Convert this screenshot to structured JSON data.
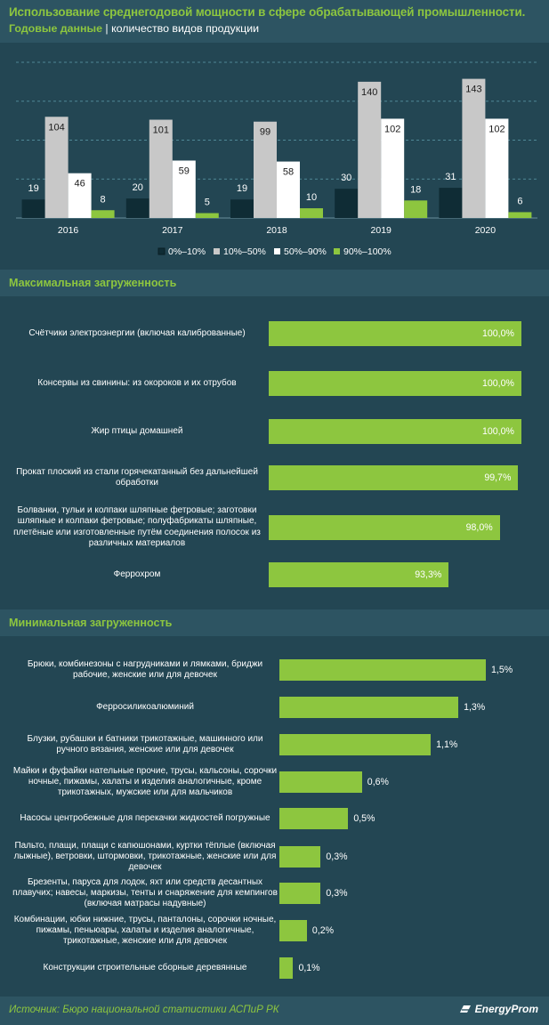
{
  "header": {
    "title": "Использование среднегодовой мощности в сфере обрабатывающей промышленности.",
    "subtitle_accent": "Годовые данные",
    "subtitle_sep": " | ",
    "subtitle_rest": "количество видов продукции"
  },
  "sections": {
    "max_title": "Максимальная загруженность",
    "min_title": "Минимальная загруженность"
  },
  "footer": {
    "source": "Источник: Бюро национальной статистики АСПиР РК",
    "logo": "EnergyProm"
  },
  "colors": {
    "background": "#2d5462",
    "panel": "#234653",
    "accent": "#8dc63f",
    "series": [
      "#0f2c35",
      "#c8c8c8",
      "#ffffff",
      "#8dc63f"
    ]
  },
  "chart_data": [
    {
      "type": "bar",
      "categories": [
        "2016",
        "2017",
        "2018",
        "2019",
        "2020"
      ],
      "series": [
        {
          "name": "0%–10%",
          "values": [
            19,
            20,
            19,
            30,
            31
          ]
        },
        {
          "name": "10%–50%",
          "values": [
            104,
            101,
            99,
            140,
            143
          ]
        },
        {
          "name": "50%–90%",
          "values": [
            46,
            59,
            58,
            102,
            102
          ]
        },
        {
          "name": "90%–100%",
          "values": [
            8,
            5,
            10,
            18,
            6
          ]
        }
      ],
      "ylim": [
        0,
        160
      ],
      "grid": true,
      "legend": "bottom"
    },
    {
      "type": "bar",
      "orientation": "horizontal",
      "categories": [
        "Счётчики электроэнергии (включая калиброванные)",
        "Консервы из свинины: из окороков и их отрубов",
        "Жир птицы домашней",
        "Прокат плоский из стали горячекатанный без дальнейшей обработки",
        "Болванки, тульи и колпаки шляпные фетровые; заготовки шляпные и колпаки фетровые; полуфабрикаты шляпные, плетёные или изготовленные путём соединения полосок из различных материалов",
        "Феррохром"
      ],
      "values": [
        100.0,
        100.0,
        100.0,
        99.7,
        98.0,
        93.3
      ],
      "labels": [
        "100,0%",
        "100,0%",
        "100,0%",
        "99,7%",
        "98,0%",
        "93,3%"
      ],
      "xlim": [
        80,
        100
      ]
    },
    {
      "type": "bar",
      "orientation": "horizontal",
      "categories": [
        "Брюки, комбинезоны с нагрудниками и лямками, бриджи рабочие, женские или для девочек",
        "Ферросиликоалюминий",
        "Блузки, рубашки и батники трикотажные, машинного или ручного вязания, женские или для девочек",
        "Майки и фуфайки нательные прочие, трусы, кальсоны, сорочки ночные, пижамы, халаты и изделия аналогичные, кроме трикотажных, мужские или для мальчиков",
        "Насосы центробежные для перекачки жидкостей погружные",
        "Пальто, плащи, плащи с капюшонами, куртки тёплые (включая лыжные), ветровки, штормовки, трикотажные, женские или для девочек",
        "Брезенты, паруса для лодок, яхт или средств десантных плавучих; навесы, маркизы, тенты и снаряжение для кемпингов (включая матрасы надувные)",
        "Комбинации, юбки нижние, трусы, панталоны, сорочки ночные, пижамы, пеньюары, халаты и изделия аналогичные, трикотажные, женские или для девочек",
        "Конструкции строительные сборные деревянные"
      ],
      "values": [
        1.5,
        1.3,
        1.1,
        0.6,
        0.5,
        0.3,
        0.3,
        0.2,
        0.1
      ],
      "labels": [
        "1,5%",
        "1,3%",
        "1,1%",
        "0,6%",
        "0,5%",
        "0,3%",
        "0,3%",
        "0,2%",
        "0,1%"
      ],
      "xlim": [
        0,
        1.5
      ]
    }
  ]
}
